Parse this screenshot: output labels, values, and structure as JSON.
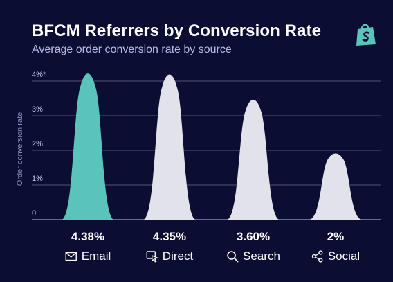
{
  "chart_data": {
    "type": "area",
    "title": "BFCM Referrers by Conversion Rate",
    "subtitle": "Average order conversion rate by source",
    "ylabel": "Order conversion rate",
    "yticks": [
      "0",
      "1%",
      "2%",
      "3%",
      "4%*"
    ],
    "ylim": [
      0,
      4.5
    ],
    "categories": [
      "Email",
      "Direct",
      "Search",
      "Social"
    ],
    "values": [
      4.38,
      4.35,
      3.6,
      2
    ],
    "value_labels": [
      "4.38%",
      "4.35%",
      "3.60%",
      "2%"
    ],
    "highlight_index": 0,
    "grid": true
  },
  "icons": [
    "mail-icon",
    "cursor-window-icon",
    "search-icon",
    "share-icon",
    "shopify-bag-icon"
  ],
  "colors": {
    "background": "#0b0d33",
    "highlight": "#5ac4bb",
    "peak_default": "#e2e2ea",
    "grid": "#6a6d98",
    "logo": "#5ac4bb"
  }
}
